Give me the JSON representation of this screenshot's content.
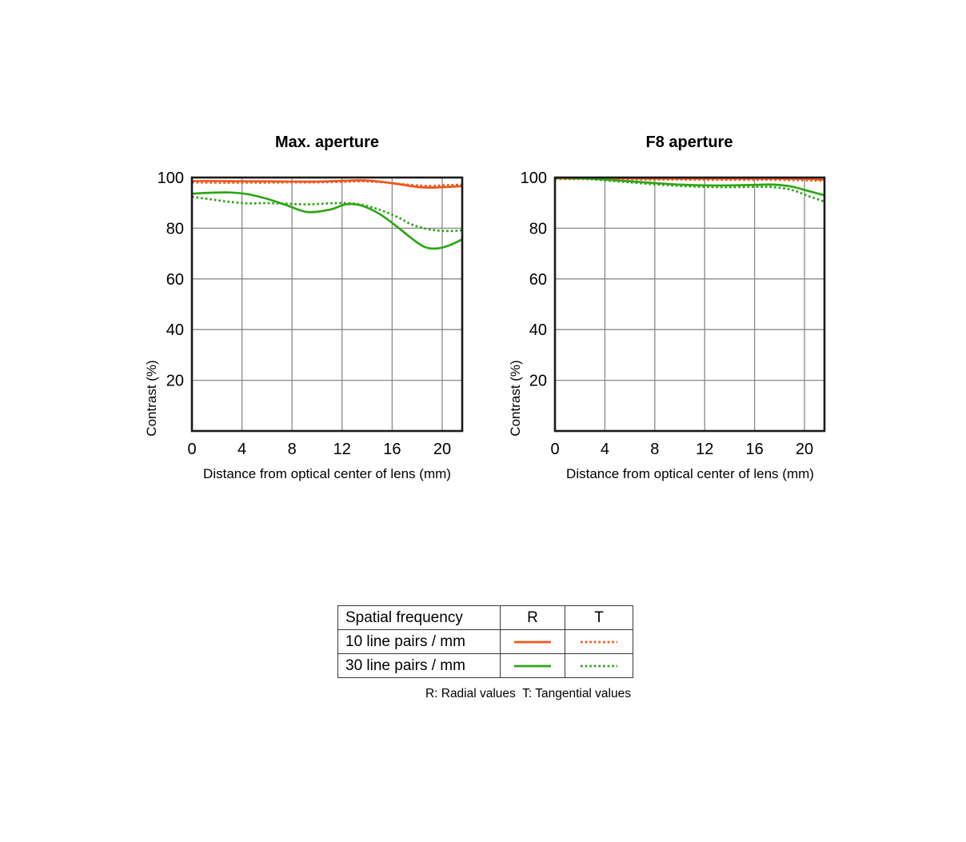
{
  "page": {
    "background": "#ffffff"
  },
  "colors": {
    "orange": "#f2551c",
    "green": "#2ea617",
    "grid": "#8a8a8a",
    "frame": "#1a1a1a",
    "text": "#000000",
    "table_border": "#3a3a3a"
  },
  "chart_data": [
    {
      "type": "line",
      "title": "Max. aperture",
      "xlabel": "Distance from optical center of lens (mm)",
      "ylabel": "Contrast (%)",
      "xlim": [
        0,
        21.6
      ],
      "ylim": [
        0,
        100
      ],
      "x_ticks": [
        0,
        4,
        8,
        12,
        16,
        20
      ],
      "y_ticks": [
        20,
        40,
        60,
        80,
        100
      ],
      "grid": true,
      "legend_position": "none",
      "series": [
        {
          "name": "10 line pairs / mm - Radial",
          "color": "orange",
          "dash": "solid",
          "x": [
            0,
            2,
            4,
            6,
            8,
            10,
            12,
            13.5,
            15,
            16.5,
            18,
            19,
            20,
            21.6
          ],
          "y": [
            98.6,
            98.6,
            98.5,
            98.5,
            98.4,
            98.4,
            98.7,
            98.9,
            98.4,
            97.4,
            96.3,
            96.0,
            96.2,
            96.6
          ]
        },
        {
          "name": "10 line pairs / mm - Tangential",
          "color": "orange",
          "dash": "dotted",
          "x": [
            0,
            2,
            4,
            6,
            8,
            10,
            12,
            13.5,
            15,
            16.5,
            18,
            19,
            20,
            21.6
          ],
          "y": [
            98.1,
            98.0,
            98.0,
            98.0,
            98.1,
            98.1,
            98.3,
            98.5,
            98.2,
            97.5,
            96.9,
            96.7,
            96.9,
            97.2
          ]
        },
        {
          "name": "30 line pairs / mm - Radial",
          "color": "green",
          "dash": "solid",
          "x": [
            0,
            1.5,
            3,
            4.5,
            6,
            7.5,
            9.2,
            11,
            12.3,
            13.5,
            15,
            16.5,
            17.5,
            18.6,
            19.6,
            20.6,
            21.6
          ],
          "y": [
            93.6,
            94.0,
            94.1,
            93.4,
            91.6,
            89.2,
            86.4,
            87.3,
            89.4,
            89.0,
            85.6,
            80.2,
            76.2,
            72.6,
            72.0,
            73.3,
            75.6
          ]
        },
        {
          "name": "30 line pairs / mm - Tangential",
          "color": "green",
          "dash": "dotted",
          "x": [
            0,
            1.5,
            3,
            4.5,
            6,
            7.5,
            9.2,
            11,
            12.3,
            13.5,
            15,
            16.5,
            17.5,
            18.6,
            19.6,
            20.6,
            21.6
          ],
          "y": [
            92.4,
            91.4,
            90.4,
            89.8,
            89.9,
            89.7,
            89.4,
            89.8,
            89.9,
            89.3,
            87.3,
            84.2,
            81.6,
            79.9,
            79.1,
            78.9,
            79.2
          ]
        }
      ]
    },
    {
      "type": "line",
      "title": "F8 aperture",
      "xlabel": "Distance from optical center of lens (mm)",
      "ylabel": "Contrast (%)",
      "xlim": [
        0,
        21.6
      ],
      "ylim": [
        0,
        100
      ],
      "x_ticks": [
        0,
        4,
        8,
        12,
        16,
        20
      ],
      "y_ticks": [
        20,
        40,
        60,
        80,
        100
      ],
      "grid": true,
      "legend_position": "none",
      "series": [
        {
          "name": "10 line pairs / mm - Radial",
          "color": "orange",
          "dash": "solid",
          "x": [
            0,
            2,
            4,
            6,
            8,
            10,
            12,
            14,
            16,
            17.5,
            19,
            20.3,
            21.6
          ],
          "y": [
            99.7,
            99.7,
            99.7,
            99.7,
            99.6,
            99.6,
            99.6,
            99.6,
            99.6,
            99.6,
            99.5,
            99.4,
            99.2
          ]
        },
        {
          "name": "10 line pairs / mm - Tangential",
          "color": "orange",
          "dash": "dotted",
          "x": [
            0,
            2,
            4,
            6,
            8,
            10,
            12,
            14,
            16,
            17.5,
            19,
            20.3,
            21.6
          ],
          "y": [
            99.4,
            99.4,
            99.3,
            99.3,
            99.2,
            99.2,
            99.1,
            99.1,
            99.1,
            99.1,
            99.0,
            98.9,
            98.7
          ]
        },
        {
          "name": "30 line pairs / mm - Radial",
          "color": "green",
          "dash": "solid",
          "x": [
            0,
            2,
            4,
            6,
            8,
            10,
            12,
            14,
            16,
            17.5,
            19,
            20.3,
            21.6
          ],
          "y": [
            99.8,
            99.7,
            99.2,
            98.5,
            97.8,
            97.2,
            96.9,
            96.9,
            97.1,
            97.2,
            96.4,
            94.7,
            93.0
          ]
        },
        {
          "name": "30 line pairs / mm - Tangential",
          "color": "green",
          "dash": "dotted",
          "x": [
            0,
            2,
            4,
            6,
            8,
            10,
            12,
            14,
            16,
            17.5,
            19,
            20.3,
            21.6
          ],
          "y": [
            99.8,
            99.6,
            98.9,
            98.1,
            97.3,
            96.7,
            96.3,
            96.2,
            96.3,
            96.2,
            95.1,
            92.7,
            90.5
          ]
        }
      ]
    }
  ],
  "legend_table": {
    "header": {
      "col1": "Spatial frequency",
      "col2": "R",
      "col3": "T"
    },
    "rows": [
      {
        "label": "10 line pairs / mm",
        "color": "orange"
      },
      {
        "label": "30 line pairs / mm",
        "color": "green"
      }
    ],
    "footnote": "R: Radial values  T: Tangential values"
  }
}
